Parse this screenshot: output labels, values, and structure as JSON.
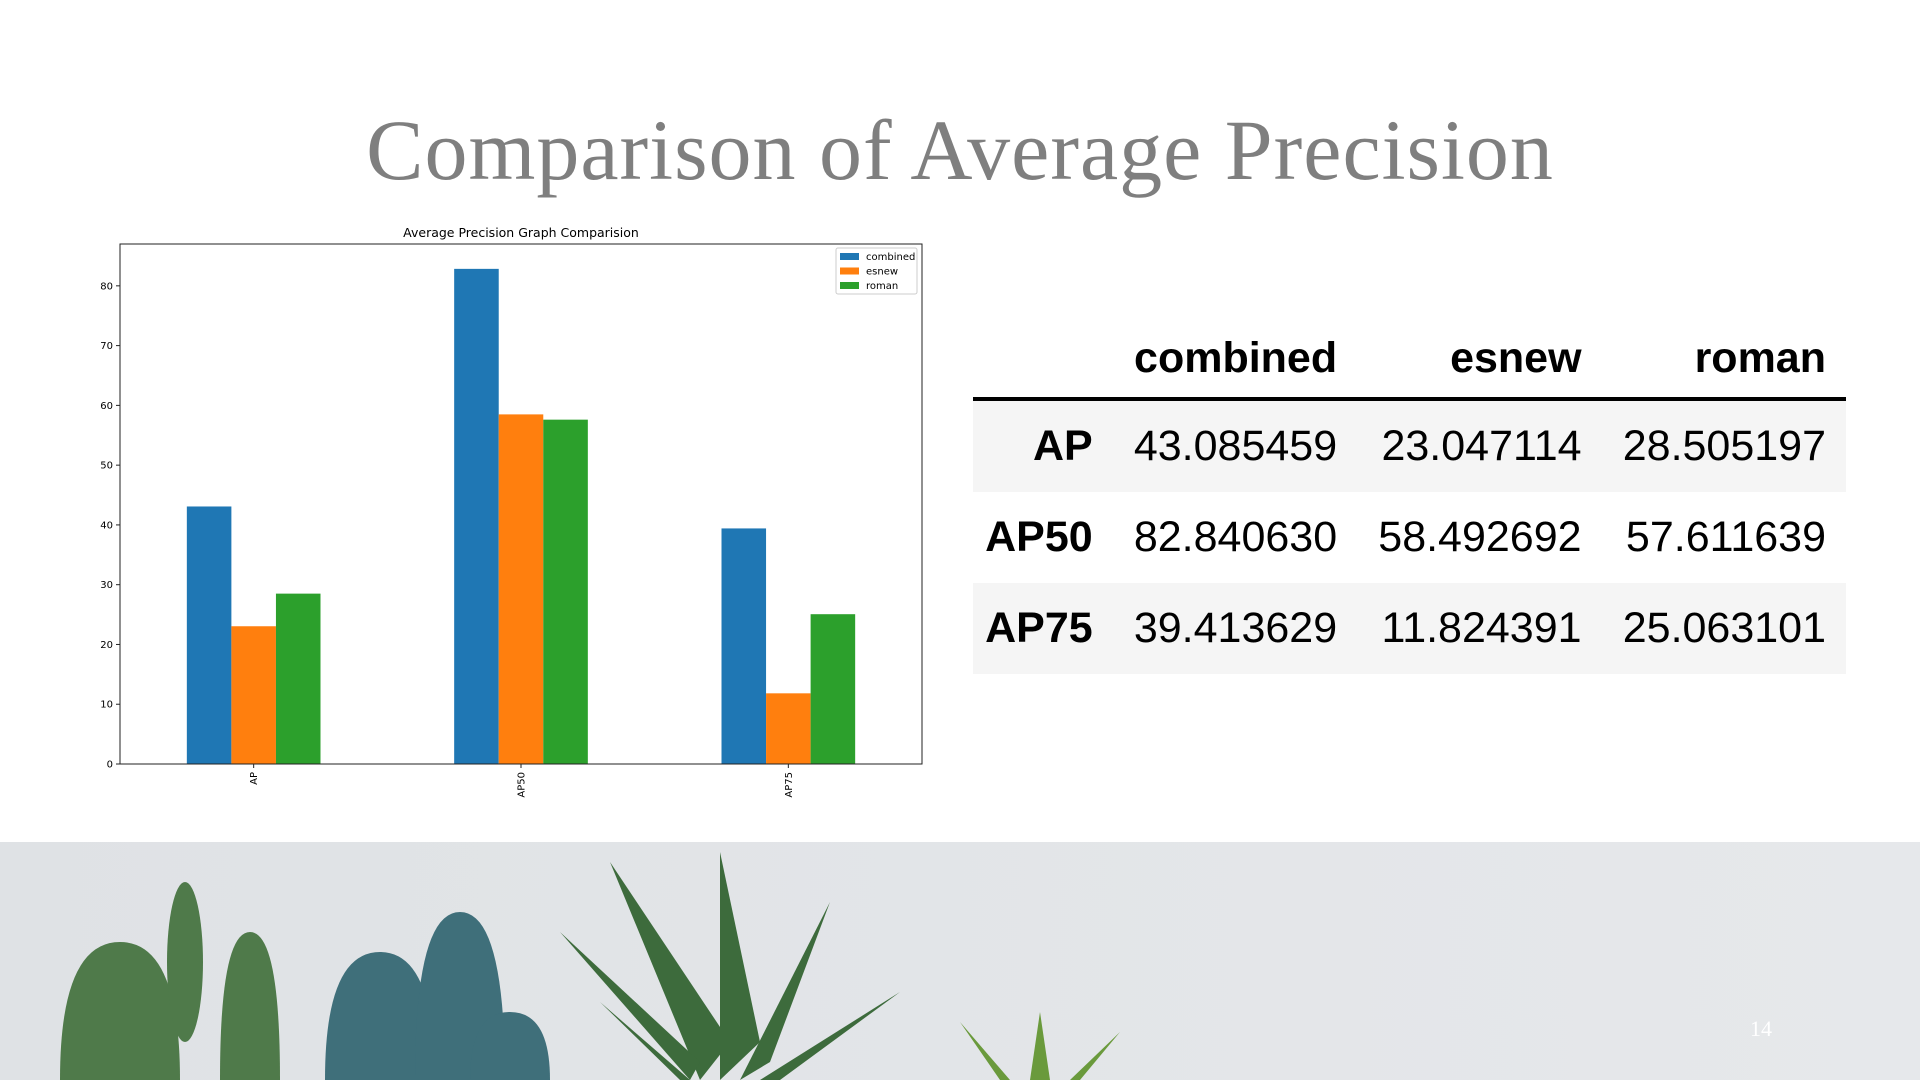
{
  "slide": {
    "title": "Comparison of  Average Precision",
    "page_number": "14"
  },
  "table": {
    "columns": [
      "",
      "combined",
      "esnew",
      "roman"
    ],
    "rows": [
      {
        "label": "AP",
        "values": [
          "43.085459",
          "23.047114",
          "28.505197"
        ]
      },
      {
        "label": "AP50",
        "values": [
          "82.840630",
          "58.492692",
          "57.611639"
        ]
      },
      {
        "label": "AP75",
        "values": [
          "39.413629",
          "11.824391",
          "25.063101"
        ]
      }
    ]
  },
  "chart_data": {
    "type": "bar",
    "title": "Average Precision Graph Comparision",
    "categories": [
      "AP",
      "AP50",
      "AP75"
    ],
    "series": [
      {
        "name": "combined",
        "values": [
          43.085459,
          82.84063,
          39.413629
        ],
        "color": "#1f77b4"
      },
      {
        "name": "esnew",
        "values": [
          23.047114,
          58.492692,
          11.824391
        ],
        "color": "#ff7f0e"
      },
      {
        "name": "roman",
        "values": [
          28.505197,
          57.611639,
          25.063101
        ],
        "color": "#2ca02c"
      }
    ],
    "yticks": [
      0,
      10,
      20,
      30,
      40,
      50,
      60,
      70,
      80
    ],
    "ylim": [
      0,
      87
    ],
    "xlabel": "",
    "ylabel": "",
    "grid": false,
    "legend": "top-right"
  }
}
